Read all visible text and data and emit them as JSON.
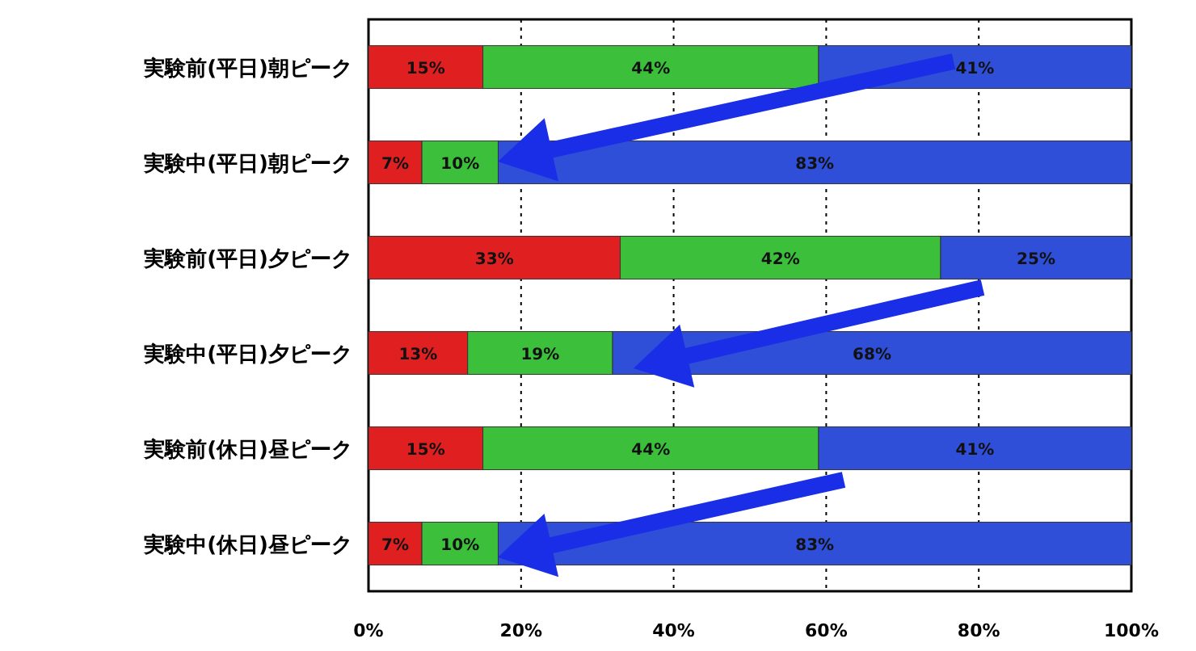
{
  "chart_data": {
    "type": "bar",
    "orientation": "horizontal",
    "stacked": true,
    "categories": [
      "実験前(平日)朝ピーク",
      "実験中(平日)朝ピーク",
      "実験前(平日)夕ピーク",
      "実験中(平日)夕ピーク",
      "実験前(休日)昼ピーク",
      "実験中(休日)昼ピーク"
    ],
    "series": [
      {
        "color": "#e02020",
        "values": [
          15,
          7,
          33,
          13,
          15,
          7
        ],
        "value_labels": [
          "15%",
          "7%",
          "33%",
          "13%",
          "15%",
          "7%"
        ]
      },
      {
        "color": "#3cc03c",
        "values": [
          44,
          10,
          42,
          19,
          44,
          10
        ],
        "value_labels": [
          "44%",
          "10%",
          "42%",
          "19%",
          "44%",
          "10%"
        ]
      },
      {
        "color": "#2f4fd8",
        "values": [
          41,
          83,
          25,
          68,
          41,
          83
        ],
        "value_labels": [
          "41%",
          "83%",
          "25%",
          "68%",
          "41%",
          "83%"
        ]
      }
    ],
    "xlim": [
      0,
      100
    ],
    "xticks": [
      {
        "value": 0,
        "label": "0%"
      },
      {
        "value": 20,
        "label": "20%"
      },
      {
        "value": 40,
        "label": "40%"
      },
      {
        "value": 60,
        "label": "60%"
      },
      {
        "value": 80,
        "label": "80%"
      },
      {
        "value": 100,
        "label": "100%"
      }
    ],
    "grid": "x",
    "line_style": "dotted"
  }
}
